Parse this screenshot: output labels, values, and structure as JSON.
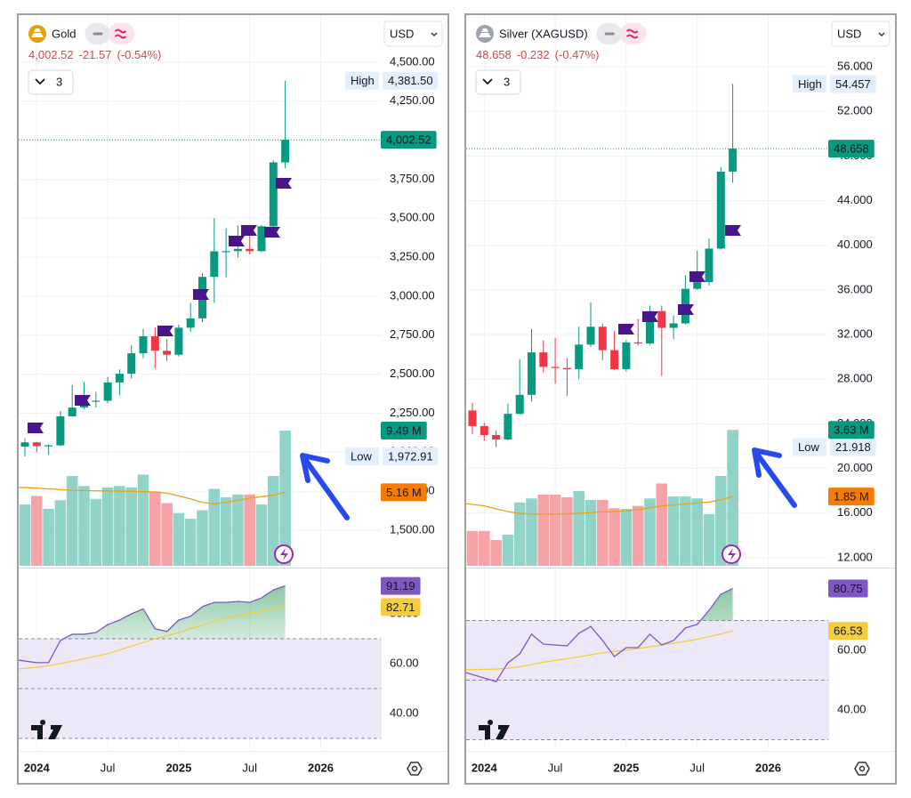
{
  "chart_data": [
    {
      "type": "candlestick",
      "title": "Gold",
      "currency": "USD",
      "price_label": "4,002.52",
      "change_label": "-21.57",
      "change_pct_label": "(-0.54%)",
      "indicator_count": 3,
      "high_text": "High",
      "high_label": "4,381.50",
      "low_text": "Low",
      "low_label": "1,972.91",
      "open": [
        2036,
        2063,
        2039,
        2044,
        2230,
        2286,
        2327,
        2330,
        2447,
        2503,
        2634,
        2743,
        2650,
        2625,
        2798,
        2858,
        3124,
        3288,
        3289,
        3303,
        3289,
        3448,
        3858
      ],
      "high": [
        2088,
        2065,
        2050,
        2265,
        2431,
        2450,
        2387,
        2483,
        2531,
        2685,
        2790,
        2801,
        2726,
        2817,
        2956,
        3148,
        3500,
        3435,
        3452,
        3439,
        3454,
        3871,
        4381.5
      ],
      "low": [
        1972.91,
        2002,
        1984,
        2039,
        2228,
        2277,
        2286,
        2315,
        2364,
        2472,
        2603,
        2536,
        2583,
        2614,
        2772,
        2833,
        2957,
        3121,
        3247,
        3268,
        3281,
        3436,
        3820
      ],
      "close": [
        2063,
        2039,
        2044,
        2230,
        2286,
        2327,
        2330,
        2447,
        2503,
        2634,
        2743,
        2650,
        2625,
        2798,
        2858,
        3124,
        3288,
        3289,
        3303,
        3289,
        3448,
        3858,
        4002.52
      ],
      "ylim": [
        1266,
        4625
      ],
      "yticks": [
        {
          "value": 1500,
          "label": "1,500.00"
        },
        {
          "value": 1750,
          "label": "1,750.00"
        },
        {
          "value": 2000,
          "label": "2,000.00"
        },
        {
          "value": 2250,
          "label": "2,250.00"
        },
        {
          "value": 2500,
          "label": "2,500.00"
        },
        {
          "value": 2750,
          "label": "2,750.00"
        },
        {
          "value": 3000,
          "label": "3,000.00"
        },
        {
          "value": 3250,
          "label": "3,250.00"
        },
        {
          "value": 3500,
          "label": "3,500.00"
        },
        {
          "value": 3750,
          "label": "3,750.00"
        },
        {
          "value": 4000,
          "label": "4,000.00"
        },
        {
          "value": 4250,
          "label": "4,250.00"
        },
        {
          "value": 4500,
          "label": "4,500.00"
        }
      ],
      "xticks": [
        {
          "value": 1,
          "label": "2024"
        },
        {
          "value": 7,
          "label": "Jul"
        },
        {
          "value": 13,
          "label": "2025"
        },
        {
          "value": 19,
          "label": "Jul"
        },
        {
          "value": 25,
          "label": "2026"
        }
      ],
      "volume": [
        4.3,
        4.9,
        4.0,
        4.6,
        6.3,
        5.6,
        4.7,
        5.5,
        5.6,
        5.5,
        6.4,
        5.2,
        4.4,
        3.7,
        3.3,
        3.9,
        5.4,
        4.8,
        5.0,
        5.0,
        4.3,
        6.3,
        9.49
      ],
      "volume_ma": [
        5.5,
        5.45,
        5.4,
        5.35,
        5.3,
        5.28,
        5.26,
        5.25,
        5.24,
        5.22,
        5.2,
        5.18,
        5.1,
        4.9,
        4.7,
        4.45,
        4.35,
        4.45,
        4.6,
        4.75,
        4.85,
        4.95,
        5.16
      ],
      "volume_lim": [
        0,
        9.8
      ],
      "volume_last_label": "9.49 M",
      "volume_ma_label": "5.16 M",
      "rsi": [
        61.4,
        60.4,
        60.4,
        69.3,
        71.8,
        71.8,
        72.5,
        75.7,
        77.5,
        80,
        82,
        74,
        72.9,
        77.5,
        79,
        82.9,
        84.6,
        84.6,
        85,
        84.6,
        86.4,
        89.6,
        91.19
      ],
      "rsi_ma": [
        57.9,
        58.5,
        59.2,
        60,
        61,
        62,
        63,
        64,
        65.5,
        67,
        68.5,
        70,
        71.2,
        72.5,
        74,
        75.5,
        77,
        78.2,
        79.3,
        80.2,
        81,
        81.9,
        82.71
      ],
      "rsi_lim": [
        25.7,
        97.86
      ],
      "rsi_yticks": [
        {
          "value": 40,
          "label": "40.00"
        },
        {
          "value": 60,
          "label": "60.00"
        },
        {
          "value": 80,
          "label": "80.00"
        }
      ],
      "rsi_bands": [
        30,
        50,
        70
      ],
      "grid": true,
      "up_color": "#089981",
      "down_color": "#f23645",
      "volume_up_color": "#92d3c9",
      "volume_down_color": "#f5a3a6",
      "volume_ma_color": "#e8a317",
      "rsi_color": "#7e57c2",
      "rsi_ma_color": "#f5cc3d"
    },
    {
      "type": "candlestick",
      "title": "Silver (XAGUSD)",
      "currency": "USD",
      "price_label": "48.658",
      "change_label": "-0.232",
      "change_pct_label": "(-0.47%)",
      "indicator_count": 3,
      "high_text": "High",
      "high_label": "54.457",
      "low_text": "Low",
      "low_label": "21.918",
      "open": [
        25.2,
        23.8,
        23.0,
        22.6,
        24.9,
        26.6,
        30.4,
        29.1,
        29.0,
        28.9,
        31.1,
        32.7,
        30.6,
        28.9,
        31.3,
        31.2,
        34.1,
        32.6,
        33.0,
        36.1,
        36.7,
        39.7,
        46.6
      ],
      "high": [
        25.9,
        24.1,
        23.4,
        25.8,
        29.8,
        32.5,
        31.5,
        31.7,
        29.9,
        32.7,
        34.9,
        33.0,
        32.3,
        31.5,
        33.4,
        34.6,
        34.6,
        33.7,
        37.3,
        39.5,
        40.6,
        47.0,
        54.457
      ],
      "low": [
        23.1,
        22.5,
        21.918,
        22.5,
        24.8,
        26.0,
        28.6,
        27.6,
        26.5,
        28.0,
        30.9,
        29.7,
        28.8,
        28.7,
        31.0,
        31.1,
        28.3,
        31.6,
        32.9,
        36.0,
        36.4,
        39.6,
        45.6
      ],
      "close": [
        23.8,
        23.0,
        22.6,
        24.9,
        26.6,
        30.4,
        29.1,
        29.0,
        28.9,
        31.1,
        32.7,
        30.6,
        28.9,
        31.3,
        31.2,
        34.1,
        32.6,
        33.0,
        36.1,
        36.7,
        39.7,
        46.6,
        48.658
      ],
      "ylim": [
        11.2,
        58.15
      ],
      "yticks": [
        {
          "value": 12,
          "label": "12.000"
        },
        {
          "value": 16,
          "label": "16.000"
        },
        {
          "value": 20,
          "label": "20.000"
        },
        {
          "value": 24,
          "label": "24.000"
        },
        {
          "value": 28,
          "label": "28.000"
        },
        {
          "value": 32,
          "label": "32.000"
        },
        {
          "value": 36,
          "label": "36.000"
        },
        {
          "value": 40,
          "label": "40.000"
        },
        {
          "value": 44,
          "label": "44.000"
        },
        {
          "value": 48,
          "label": "48.000"
        },
        {
          "value": 52,
          "label": "52.000"
        },
        {
          "value": 56,
          "label": "56.000"
        }
      ],
      "xticks": [
        {
          "value": 1,
          "label": "2024"
        },
        {
          "value": 7,
          "label": "Jul"
        },
        {
          "value": 13,
          "label": "2025"
        },
        {
          "value": 19,
          "label": "Jul"
        },
        {
          "value": 25,
          "label": "2026"
        }
      ],
      "volume": [
        0.93,
        0.93,
        0.69,
        0.83,
        1.69,
        1.8,
        1.9,
        1.9,
        1.83,
        2.0,
        1.76,
        1.76,
        1.54,
        1.52,
        1.6,
        1.8,
        2.2,
        1.85,
        1.85,
        1.8,
        1.38,
        2.4,
        3.63
      ],
      "volume_ma": [
        1.66,
        1.6,
        1.52,
        1.45,
        1.4,
        1.38,
        1.38,
        1.38,
        1.39,
        1.4,
        1.42,
        1.44,
        1.45,
        1.47,
        1.5,
        1.55,
        1.6,
        1.62,
        1.65,
        1.68,
        1.7,
        1.76,
        1.85
      ],
      "volume_lim": [
        0,
        3.73
      ],
      "volume_last_label": "3.63 M",
      "volume_ma_label": "1.85 M",
      "rsi": [
        52.5,
        50.7,
        49.5,
        55.8,
        58.8,
        65.4,
        62.1,
        61.8,
        61.5,
        65.7,
        68,
        63.3,
        57.9,
        60.9,
        60.9,
        65.4,
        61.8,
        63.3,
        67.5,
        68.7,
        73.4,
        78.8,
        80.75
      ],
      "rsi_ma": [
        53.5,
        53.6,
        53.7,
        54,
        54.5,
        55.2,
        56,
        56.6,
        57.2,
        57.8,
        58.5,
        59.2,
        59.6,
        60,
        60.6,
        61.2,
        61.8,
        62.4,
        63,
        63.7,
        64.6,
        65.5,
        66.53
      ],
      "rsi_lim": [
        26.87,
        87.16
      ],
      "rsi_yticks": [
        {
          "value": 40,
          "label": "40.00"
        },
        {
          "value": 60,
          "label": "60.00"
        },
        {
          "value": 80,
          "label": "80.00"
        }
      ],
      "rsi_bands": [
        30,
        50,
        70
      ],
      "grid": true,
      "up_color": "#089981",
      "down_color": "#f23645",
      "volume_up_color": "#92d3c9",
      "volume_down_color": "#f5a3a6",
      "volume_ma_color": "#e8a317",
      "rsi_color": "#7e57c2",
      "rsi_ma_color": "#f5cc3d"
    }
  ]
}
